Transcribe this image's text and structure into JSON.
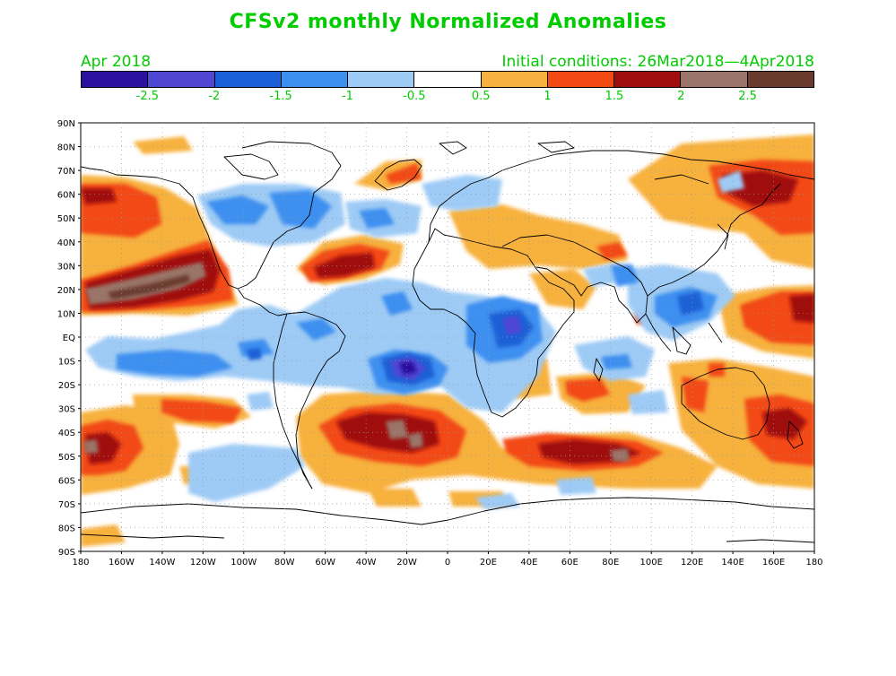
{
  "header": {
    "title": "CFSv2 monthly Normalized Anomalies",
    "period": "Apr 2018",
    "initial_conditions": "Initial conditions: 26Mar2018—4Apr2018"
  },
  "colorbar": {
    "colors": [
      "#2a119e",
      "#4f46d4",
      "#1a60d6",
      "#3d8ff0",
      "#9ecbf5",
      "#ffffff",
      "#f7b13e",
      "#f24a12",
      "#a00d0d",
      "#9a7468",
      "#6a3a2e"
    ],
    "labels": [
      "-2.5",
      "-2",
      "-1.5",
      "-1",
      "-0.5",
      "0.5",
      "1",
      "1.5",
      "2",
      "2.5"
    ]
  },
  "map": {
    "lat_labels": [
      "90N",
      "80N",
      "70N",
      "60N",
      "50N",
      "40N",
      "30N",
      "20N",
      "10N",
      "EQ",
      "10S",
      "20S",
      "30S",
      "40S",
      "50S",
      "60S",
      "70S",
      "80S",
      "90S"
    ],
    "lon_labels": [
      "180",
      "160W",
      "140W",
      "120W",
      "100W",
      "80W",
      "60W",
      "40W",
      "20W",
      "0",
      "20E",
      "40E",
      "60E",
      "80E",
      "100E",
      "120E",
      "140E",
      "160E",
      "180"
    ]
  }
}
